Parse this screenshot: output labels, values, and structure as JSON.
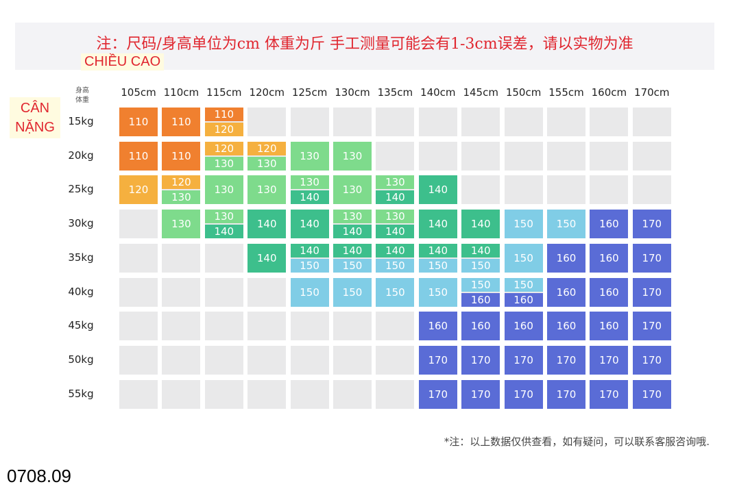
{
  "header": {
    "note": "注：尺码/身高单位为cm 体重为斤  手工测量可能会有1-3cm误差，请以实物为准"
  },
  "labels": {
    "height": "CHIỀU CAO",
    "weight": "CÂN NẶNG",
    "corner_top": "身高",
    "corner_bottom": "体重"
  },
  "colors": {
    "110": "#f0802f",
    "120": "#f5b03f",
    "130": "#7edb8c",
    "140": "#3dbf8c",
    "150": "#80cde6",
    "160": "#5a6cd6",
    "170": "#5a6cd6",
    "empty": "#e9e9ea"
  },
  "table": {
    "columns": [
      "105cm",
      "110cm",
      "115cm",
      "120cm",
      "125cm",
      "130cm",
      "135cm",
      "140cm",
      "145cm",
      "150cm",
      "155cm",
      "160cm",
      "170cm"
    ],
    "rows": [
      {
        "weight": "15kg",
        "cells": [
          [
            110
          ],
          [
            110
          ],
          [
            110,
            120
          ],
          [],
          [],
          [],
          [],
          [],
          [],
          [],
          [],
          [],
          []
        ]
      },
      {
        "weight": "20kg",
        "cells": [
          [
            110
          ],
          [
            110
          ],
          [
            120,
            130
          ],
          [
            120,
            130
          ],
          [
            130
          ],
          [
            130
          ],
          [],
          [],
          [],
          [],
          [],
          [],
          []
        ]
      },
      {
        "weight": "25kg",
        "cells": [
          [
            120
          ],
          [
            120,
            130
          ],
          [
            130
          ],
          [
            130
          ],
          [
            130,
            140
          ],
          [
            130
          ],
          [
            130,
            140
          ],
          [
            140
          ],
          [],
          [],
          [],
          [],
          []
        ]
      },
      {
        "weight": "30kg",
        "cells": [
          [],
          [
            130
          ],
          [
            130,
            140
          ],
          [
            140
          ],
          [
            140
          ],
          [
            130,
            140
          ],
          [
            130,
            140
          ],
          [
            140
          ],
          [
            140
          ],
          [
            150
          ],
          [
            150
          ],
          [
            160
          ],
          [
            170
          ]
        ]
      },
      {
        "weight": "35kg",
        "cells": [
          [],
          [],
          [],
          [
            140
          ],
          [
            140,
            150
          ],
          [
            140,
            150
          ],
          [
            140,
            150
          ],
          [
            140,
            150
          ],
          [
            140,
            150
          ],
          [
            150
          ],
          [
            160
          ],
          [
            160
          ],
          [
            170
          ]
        ]
      },
      {
        "weight": "40kg",
        "cells": [
          [],
          [],
          [],
          [],
          [
            150
          ],
          [
            150
          ],
          [
            150
          ],
          [
            150
          ],
          [
            150,
            160
          ],
          [
            150,
            160
          ],
          [
            160
          ],
          [
            160
          ],
          [
            170
          ]
        ]
      },
      {
        "weight": "45kg",
        "cells": [
          [],
          [],
          [],
          [],
          [],
          [],
          [],
          [
            160
          ],
          [
            160
          ],
          [
            160
          ],
          [
            160
          ],
          [
            160
          ],
          [
            170
          ]
        ]
      },
      {
        "weight": "50kg",
        "cells": [
          [],
          [],
          [],
          [],
          [],
          [],
          [],
          [
            170
          ],
          [
            170
          ],
          [
            170
          ],
          [
            170
          ],
          [
            170
          ],
          [
            170
          ]
        ]
      },
      {
        "weight": "55kg",
        "cells": [
          [],
          [],
          [],
          [],
          [],
          [],
          [],
          [
            170
          ],
          [
            170
          ],
          [
            170
          ],
          [
            170
          ],
          [
            170
          ],
          [
            170
          ]
        ]
      }
    ]
  },
  "footer": {
    "note": "*注：以上数据仅供查看，如有疑问，可以联系客服咨询哦."
  },
  "code": "0708.09"
}
